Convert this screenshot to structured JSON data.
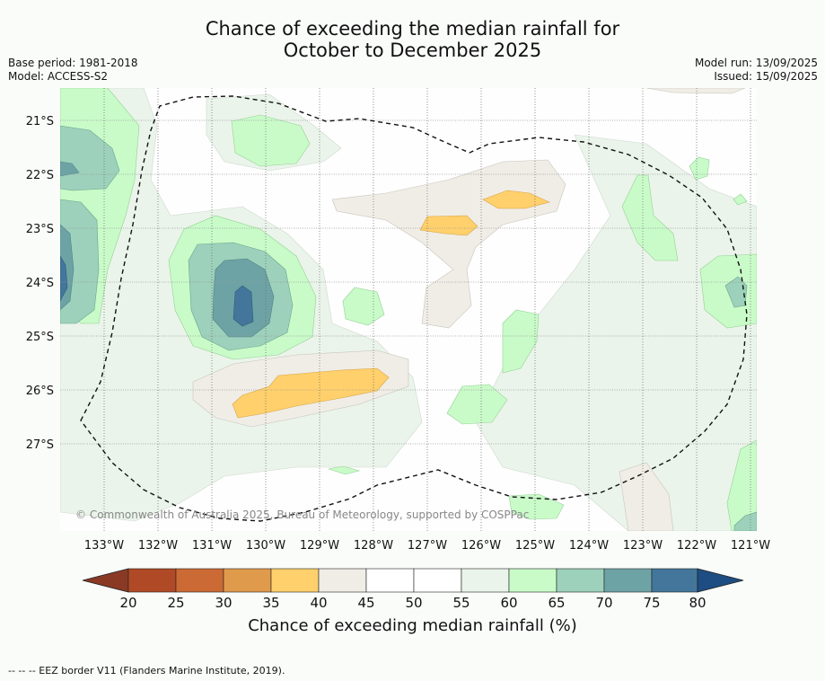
{
  "title": {
    "line1": "Chance of exceeding the median rainfall for",
    "line2": "October to December 2025"
  },
  "meta": {
    "base_period": "Base period: 1981-2018",
    "model": "Model: ACCESS-S2",
    "model_run": "Model run: 13/09/2025",
    "issued": "Issued: 15/09/2025"
  },
  "map": {
    "lat_labels": [
      "21°S",
      "22°S",
      "23°S",
      "24°S",
      "25°S",
      "26°S",
      "27°S"
    ],
    "lon_labels": [
      "133°W",
      "132°W",
      "131°W",
      "130°W",
      "129°W",
      "128°W",
      "127°W",
      "126°W",
      "125°W",
      "124°W",
      "123°W",
      "122°W",
      "121°W"
    ],
    "copyright": "© Commonwealth of Australia 2025, Bureau of Meteorology, supported by COSPPac",
    "border_style": "dashed"
  },
  "colorbar": {
    "ticks": [
      "20",
      "25",
      "30",
      "35",
      "40",
      "45",
      "50",
      "55",
      "60",
      "65",
      "70",
      "75",
      "80"
    ],
    "colors": [
      "#8a3a24",
      "#b04a26",
      "#cc6a35",
      "#e09a4c",
      "#ffd06b",
      "#f0ede6",
      "#ffffff",
      "#ffffff",
      "#eaf4ea",
      "#c9fbc9",
      "#9dd1bb",
      "#6ea3a5",
      "#43769a",
      "#1d4d82"
    ],
    "label": "Chance of exceeding median rainfall (%)"
  },
  "footnote": "--  --  -- EEZ border V11 (Flanders Marine Institute, 2019)."
}
